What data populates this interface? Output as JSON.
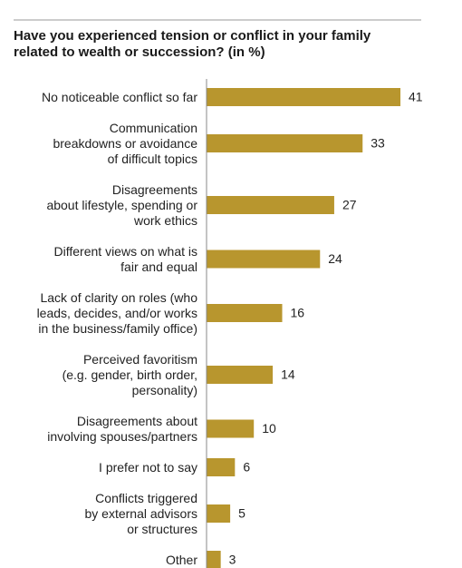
{
  "chart_data": {
    "type": "bar",
    "orientation": "horizontal",
    "title": "Have you experienced tension or conflict in your family related to wealth or succession? (in %)",
    "categories": [
      "No noticeable conflict so far",
      "Communication\nbreakdowns or avoidance\nof difficult topics",
      "Disagreements\nabout lifestyle, spending or\nwork ethics",
      "Different views on what is\nfair and equal",
      "Lack of clarity on roles (who\nleads, decides, and/or works\nin the business/family office)",
      "Perceived favoritism\n(e.g. gender, birth order,\npersonality)",
      "Disagreements about\ninvolving spouses/partners",
      "I prefer not to say",
      "Conflicts triggered\nby external advisors\nor structures",
      "Other"
    ],
    "values": [
      41,
      33,
      27,
      24,
      16,
      14,
      10,
      6,
      5,
      3
    ],
    "color": "#b8962e"
  }
}
